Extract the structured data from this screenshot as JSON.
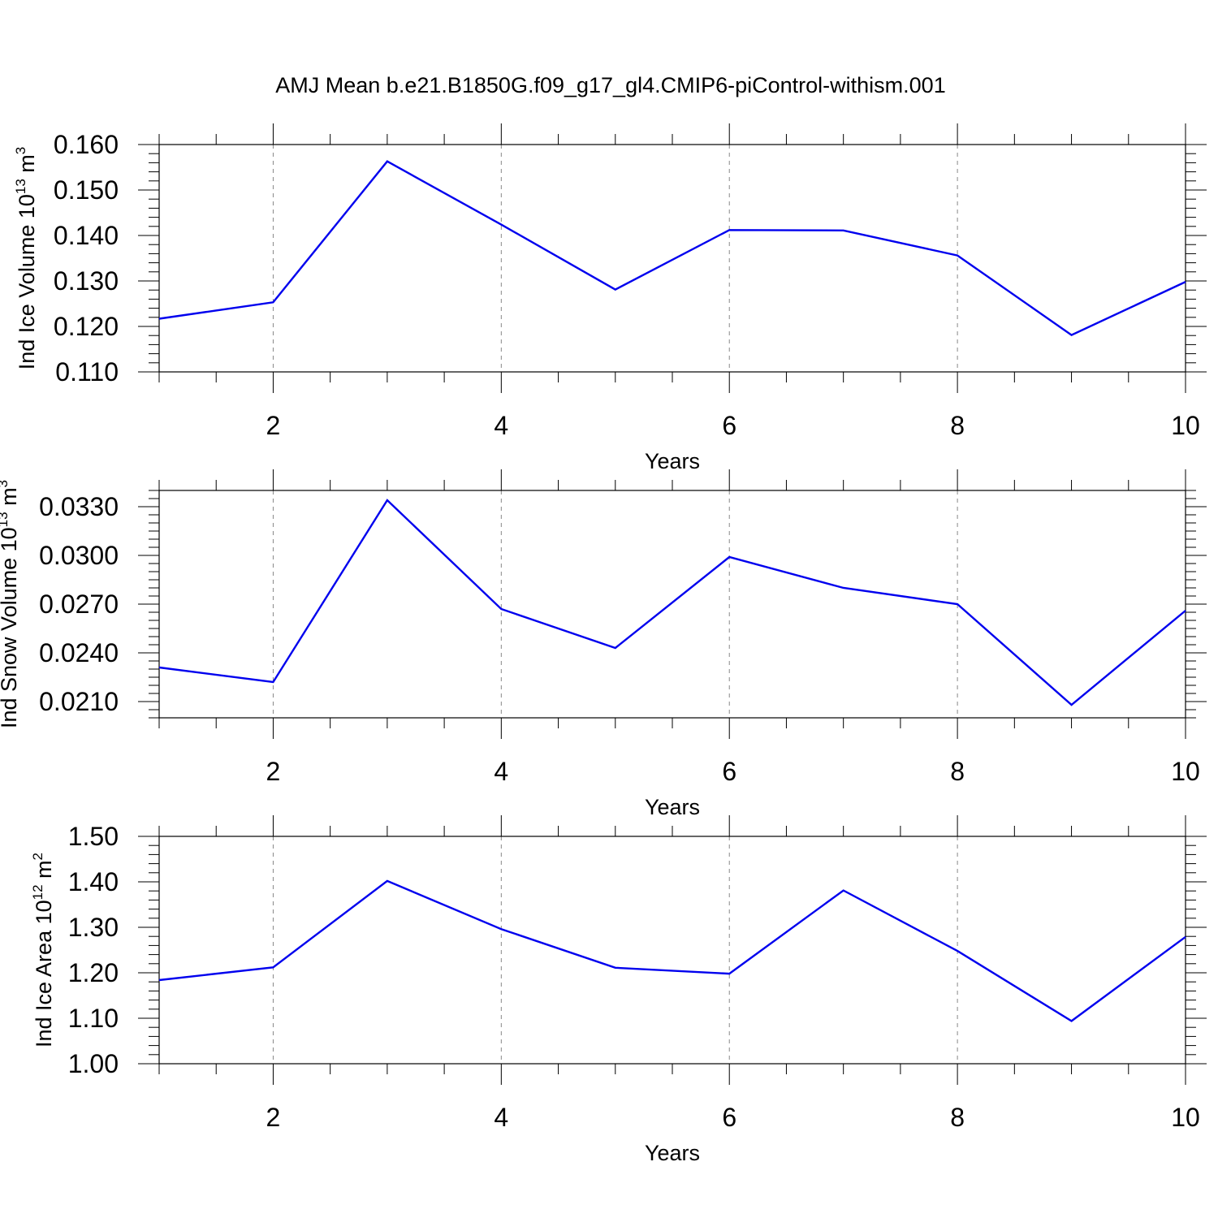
{
  "title": "AMJ Mean b.e21.B1850G.f09_g17_gl4.CMIP6-piControl-withism.001",
  "chart_data": [
    {
      "type": "line",
      "ylabel": "Ind Ice Volume 10",
      "ylabel_exp": "13",
      "ylabel_unit": " m",
      "ylabel_unit_exp": "3",
      "xlabel": "Years",
      "xlim": [
        1,
        10
      ],
      "ylim": [
        0.11,
        0.16
      ],
      "x_major_ticks": [
        2,
        4,
        6,
        8,
        10
      ],
      "y_ticks": [
        0.11,
        0.12,
        0.13,
        0.14,
        0.15,
        0.16
      ],
      "y_tick_labels": [
        "0.110",
        "0.120",
        "0.130",
        "0.140",
        "0.150",
        "0.160"
      ],
      "y_minor_step": 0.002,
      "series": [
        {
          "x": [
            1,
            2,
            3,
            4,
            5,
            6,
            7,
            8,
            9,
            10
          ],
          "values": [
            0.1217,
            0.1253,
            0.1563,
            0.1424,
            0.1281,
            0.1412,
            0.1411,
            0.1356,
            0.1181,
            0.1298
          ],
          "color": "#0000ee"
        }
      ],
      "grid": "dashed vertical at major x ticks"
    },
    {
      "type": "line",
      "ylabel": "Ind Snow Volume 10",
      "ylabel_exp": "13",
      "ylabel_unit": " m",
      "ylabel_unit_exp": "3",
      "xlabel": "Years",
      "xlim": [
        1,
        10
      ],
      "ylim": [
        0.02,
        0.034
      ],
      "x_major_ticks": [
        2,
        4,
        6,
        8,
        10
      ],
      "y_ticks": [
        0.021,
        0.024,
        0.027,
        0.03,
        0.033
      ],
      "y_tick_labels": [
        "0.0210",
        "0.0240",
        "0.0270",
        "0.0300",
        "0.0330"
      ],
      "y_minor_step": 0.0005,
      "series": [
        {
          "x": [
            1,
            2,
            3,
            4,
            5,
            6,
            7,
            8,
            9,
            10
          ],
          "values": [
            0.0231,
            0.0222,
            0.0334,
            0.0267,
            0.0243,
            0.0299,
            0.028,
            0.027,
            0.0208,
            0.0266
          ],
          "color": "#0000ee"
        }
      ],
      "grid": "dashed vertical at major x ticks"
    },
    {
      "type": "line",
      "ylabel": "Ind Ice Area 10",
      "ylabel_exp": "12",
      "ylabel_unit": " m",
      "ylabel_unit_exp": "2",
      "xlabel": "Years",
      "xlim": [
        1,
        10
      ],
      "ylim": [
        1.0,
        1.5
      ],
      "x_major_ticks": [
        2,
        4,
        6,
        8,
        10
      ],
      "y_ticks": [
        1.0,
        1.1,
        1.2,
        1.3,
        1.4,
        1.5
      ],
      "y_tick_labels": [
        "1.00",
        "1.10",
        "1.20",
        "1.30",
        "1.40",
        "1.50"
      ],
      "y_minor_step": 0.02,
      "series": [
        {
          "x": [
            1,
            2,
            3,
            4,
            5,
            6,
            7,
            8,
            9,
            10
          ],
          "values": [
            1.184,
            1.212,
            1.402,
            1.296,
            1.211,
            1.198,
            1.381,
            1.248,
            1.094,
            1.279
          ],
          "color": "#0000ee"
        }
      ],
      "grid": "dashed vertical at major x ticks"
    }
  ]
}
